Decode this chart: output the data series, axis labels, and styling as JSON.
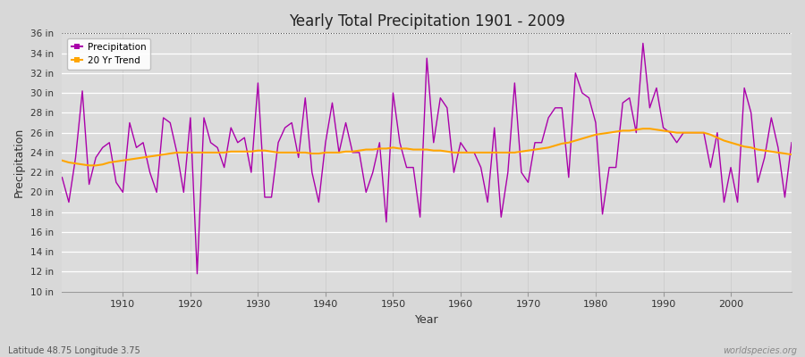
{
  "title": "Yearly Total Precipitation 1901 - 2009",
  "xlabel": "Year",
  "ylabel": "Precipitation",
  "fig_bg_color": "#d8d8d8",
  "plot_bg_color": "#dcdcdc",
  "precip_color": "#aa00aa",
  "trend_color": "#FFA500",
  "ylim": [
    10,
    36
  ],
  "yticks": [
    10,
    12,
    14,
    16,
    18,
    20,
    22,
    24,
    26,
    28,
    30,
    32,
    34,
    36
  ],
  "xlim": [
    1901,
    2009
  ],
  "xticks": [
    1910,
    1920,
    1930,
    1940,
    1950,
    1960,
    1970,
    1980,
    1990,
    2000
  ],
  "years": [
    1901,
    1902,
    1903,
    1904,
    1905,
    1906,
    1907,
    1908,
    1909,
    1910,
    1911,
    1912,
    1913,
    1914,
    1915,
    1916,
    1917,
    1918,
    1919,
    1920,
    1921,
    1922,
    1923,
    1924,
    1925,
    1926,
    1927,
    1928,
    1929,
    1930,
    1931,
    1932,
    1933,
    1934,
    1935,
    1936,
    1937,
    1938,
    1939,
    1940,
    1941,
    1942,
    1943,
    1944,
    1945,
    1946,
    1947,
    1948,
    1949,
    1950,
    1951,
    1952,
    1953,
    1954,
    1955,
    1956,
    1957,
    1958,
    1959,
    1960,
    1961,
    1962,
    1963,
    1964,
    1965,
    1966,
    1967,
    1968,
    1969,
    1970,
    1971,
    1972,
    1973,
    1974,
    1975,
    1976,
    1977,
    1978,
    1979,
    1980,
    1981,
    1982,
    1983,
    1984,
    1985,
    1986,
    1987,
    1988,
    1989,
    1990,
    1991,
    1992,
    1993,
    1994,
    1995,
    1996,
    1997,
    1998,
    1999,
    2000,
    2001,
    2002,
    2003,
    2004,
    2005,
    2006,
    2007,
    2008,
    2009
  ],
  "precip": [
    21.5,
    19.0,
    23.5,
    30.2,
    20.8,
    23.5,
    24.5,
    25.0,
    21.0,
    20.0,
    27.0,
    24.5,
    25.0,
    22.0,
    20.0,
    27.5,
    27.0,
    24.0,
    20.0,
    27.5,
    11.8,
    27.5,
    25.0,
    24.5,
    22.5,
    26.5,
    25.0,
    25.5,
    22.0,
    31.0,
    19.5,
    19.5,
    25.0,
    26.5,
    27.0,
    23.5,
    29.5,
    22.0,
    19.0,
    25.0,
    29.0,
    24.0,
    27.0,
    24.0,
    24.0,
    20.0,
    22.0,
    25.0,
    17.0,
    30.0,
    25.0,
    22.5,
    22.5,
    17.5,
    33.5,
    25.0,
    29.5,
    28.5,
    22.0,
    25.0,
    24.0,
    24.0,
    22.5,
    19.0,
    26.5,
    17.5,
    22.0,
    31.0,
    22.0,
    21.0,
    25.0,
    25.0,
    27.5,
    28.5,
    28.5,
    21.5,
    32.0,
    30.0,
    29.5,
    27.0,
    17.8,
    22.5,
    22.5,
    29.0,
    29.5,
    26.0,
    35.0,
    28.5,
    30.5,
    26.5,
    26.0,
    25.0,
    26.0,
    26.0,
    26.0,
    26.0,
    22.5,
    26.0,
    19.0,
    22.5,
    19.0,
    30.5,
    28.0,
    21.0,
    23.5,
    27.5,
    24.5,
    19.5,
    25.0
  ],
  "trend": [
    23.2,
    23.0,
    22.9,
    22.8,
    22.7,
    22.7,
    22.8,
    23.0,
    23.1,
    23.2,
    23.3,
    23.4,
    23.5,
    23.6,
    23.7,
    23.8,
    23.9,
    24.0,
    24.0,
    24.0,
    24.0,
    24.0,
    24.0,
    24.0,
    24.0,
    24.1,
    24.1,
    24.1,
    24.1,
    24.2,
    24.2,
    24.1,
    24.0,
    24.0,
    24.0,
    24.0,
    24.0,
    23.9,
    23.9,
    24.0,
    24.0,
    24.0,
    24.1,
    24.1,
    24.2,
    24.3,
    24.3,
    24.4,
    24.4,
    24.5,
    24.4,
    24.4,
    24.3,
    24.3,
    24.3,
    24.2,
    24.2,
    24.1,
    24.0,
    24.0,
    24.0,
    24.0,
    24.0,
    24.0,
    24.0,
    24.0,
    24.0,
    24.0,
    24.1,
    24.2,
    24.3,
    24.4,
    24.5,
    24.7,
    24.9,
    25.0,
    25.2,
    25.4,
    25.6,
    25.8,
    25.9,
    26.0,
    26.1,
    26.2,
    26.2,
    26.3,
    26.4,
    26.4,
    26.3,
    26.2,
    26.1,
    26.0,
    26.0,
    26.0,
    26.0,
    26.0,
    25.8,
    25.5,
    25.2,
    25.0,
    24.8,
    24.6,
    24.5,
    24.3,
    24.2,
    24.1,
    24.0,
    23.9,
    23.8
  ],
  "watermark": "worldspecies.org",
  "footnote": "Latitude 48.75 Longitude 3.75",
  "legend_labels": [
    "Precipitation",
    "20 Yr Trend"
  ],
  "dotted_line_y": 36
}
